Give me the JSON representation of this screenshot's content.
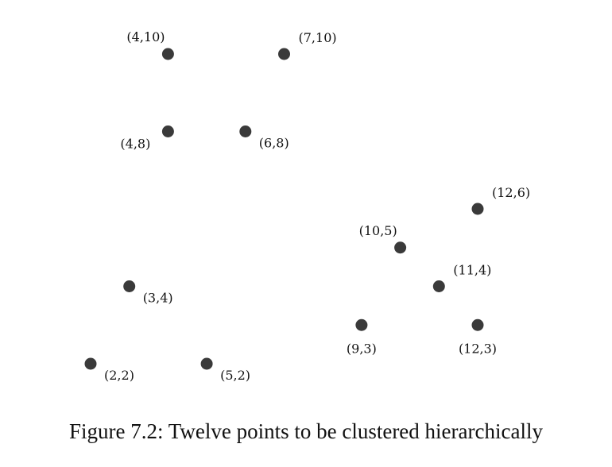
{
  "caption": "Figure 7.2: Twelve points to be clustered hierarchically",
  "colors": {
    "point": "#3a3a3a",
    "text": "#111111"
  },
  "chart_data": {
    "type": "scatter",
    "title": "",
    "xlabel": "",
    "ylabel": "",
    "xlim": [
      2,
      12
    ],
    "ylim": [
      2,
      10
    ],
    "grid": false,
    "legend": "none",
    "points": [
      {
        "x": 4,
        "y": 10,
        "label": "(4,10)",
        "label_pos": "above-left"
      },
      {
        "x": 7,
        "y": 10,
        "label": "(7,10)",
        "label_pos": "above-right"
      },
      {
        "x": 4,
        "y": 8,
        "label": "(4,8)",
        "label_pos": "below-left"
      },
      {
        "x": 6,
        "y": 8,
        "label": "(6,8)",
        "label_pos": "below-right"
      },
      {
        "x": 12,
        "y": 6,
        "label": "(12,6)",
        "label_pos": "above-right"
      },
      {
        "x": 10,
        "y": 5,
        "label": "(10,5)",
        "label_pos": "above-left"
      },
      {
        "x": 11,
        "y": 4,
        "label": "(11,4)",
        "label_pos": "above-right"
      },
      {
        "x": 3,
        "y": 4,
        "label": "(3,4)",
        "label_pos": "below-right"
      },
      {
        "x": 9,
        "y": 3,
        "label": "(9,3)",
        "label_pos": "below"
      },
      {
        "x": 12,
        "y": 3,
        "label": "(12,3)",
        "label_pos": "below"
      },
      {
        "x": 2,
        "y": 2,
        "label": "(2,2)",
        "label_pos": "below-right"
      },
      {
        "x": 5,
        "y": 2,
        "label": "(5,2)",
        "label_pos": "below-right"
      }
    ]
  }
}
